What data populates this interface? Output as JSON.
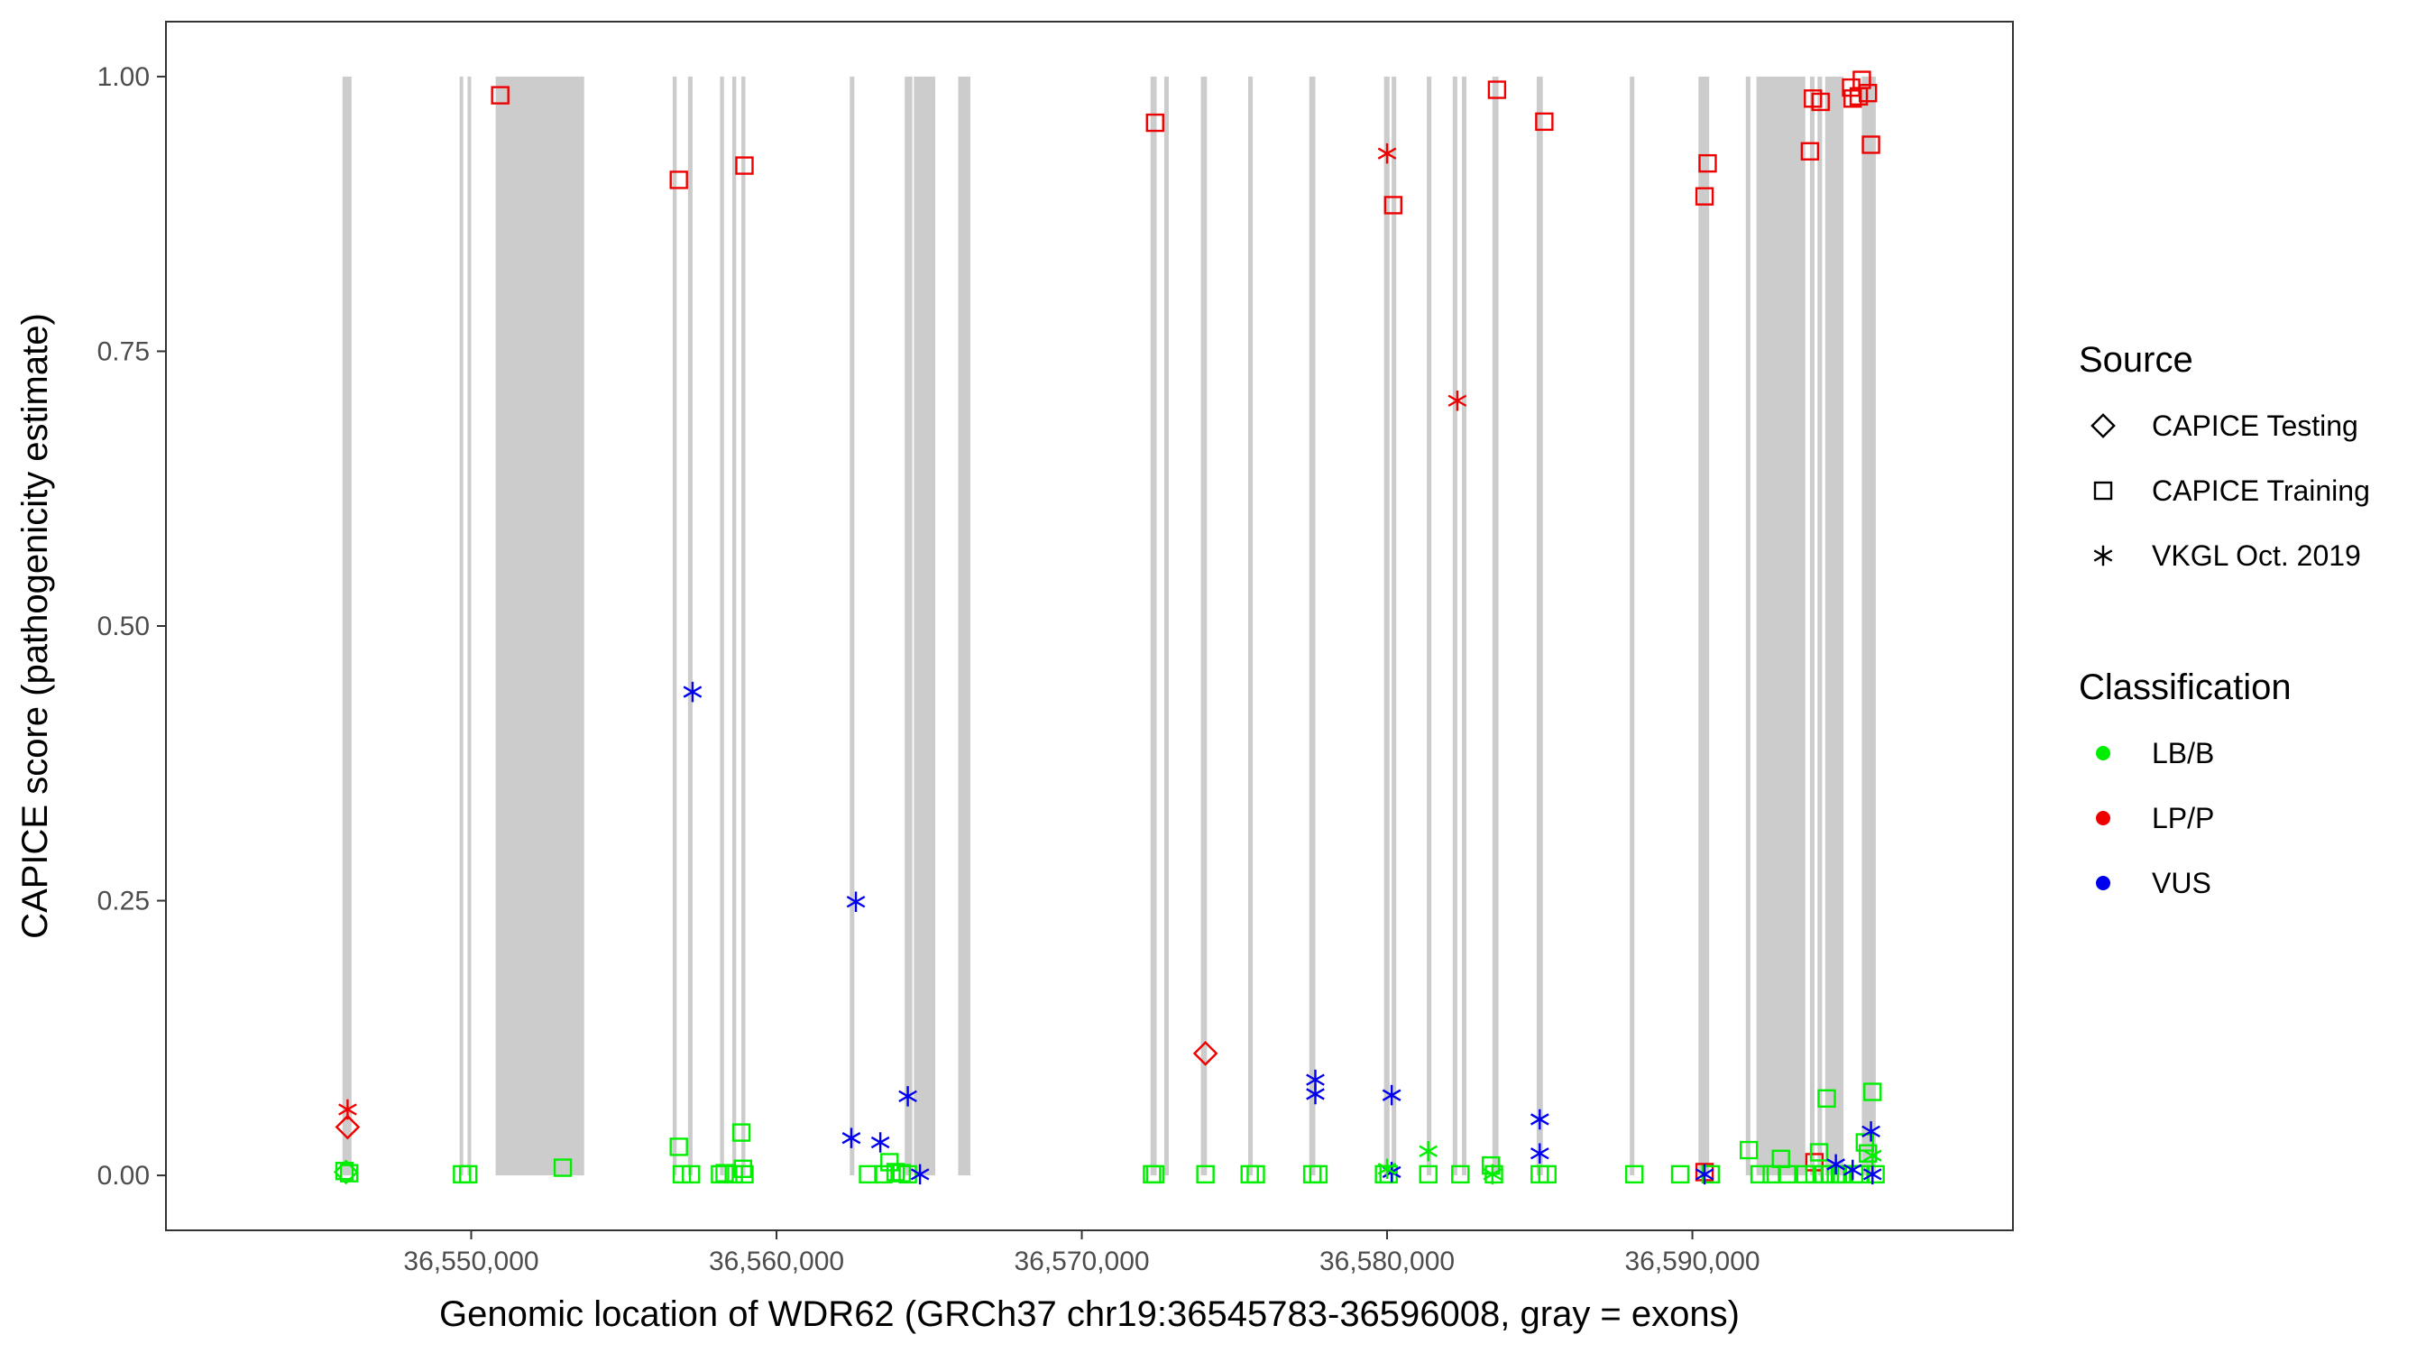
{
  "chart_data": {
    "type": "scatter",
    "xlabel": "Genomic location of WDR62 (GRCh37 chr19:36545783-36596008, gray = exons)",
    "ylabel": "CAPICE score (pathogenicity estimate)",
    "xlim": [
      36540000,
      36600500
    ],
    "ylim": [
      -0.05,
      1.05
    ],
    "x_ticks": [
      36550000,
      36560000,
      36570000,
      36580000,
      36590000
    ],
    "x_tick_labels": [
      "36,550,000",
      "36,560,000",
      "36,570,000",
      "36,580,000",
      "36,590,000"
    ],
    "y_ticks": [
      0,
      0.25,
      0.5,
      0.75,
      1.0
    ],
    "y_tick_labels": [
      "0.00",
      "0.25",
      "0.50",
      "0.75",
      "1.00"
    ],
    "grid": false,
    "legend_position": "right",
    "colors": {
      "LB/B": "#00ee00",
      "LP/P": "#ee0000",
      "VUS": "#0000ee",
      "exon": "#cccccc"
    },
    "exons": [
      [
        36545783,
        36546080
      ],
      [
        36549620,
        36549720
      ],
      [
        36549880,
        36549980
      ],
      [
        36550800,
        36553700
      ],
      [
        36556600,
        36556730
      ],
      [
        36557100,
        36557250
      ],
      [
        36558150,
        36558280
      ],
      [
        36558550,
        36558680
      ],
      [
        36558850,
        36558980
      ],
      [
        36562400,
        36562550
      ],
      [
        36564200,
        36564450
      ],
      [
        36564500,
        36565200
      ],
      [
        36565950,
        36566350
      ],
      [
        36572250,
        36572450
      ],
      [
        36572700,
        36572850
      ],
      [
        36573900,
        36574100
      ],
      [
        36575450,
        36575600
      ],
      [
        36577450,
        36577650
      ],
      [
        36579900,
        36580080
      ],
      [
        36580150,
        36580300
      ],
      [
        36581300,
        36581450
      ],
      [
        36582150,
        36582300
      ],
      [
        36582450,
        36582600
      ],
      [
        36583450,
        36583650
      ],
      [
        36584900,
        36585100
      ],
      [
        36587950,
        36588100
      ],
      [
        36590200,
        36590550
      ],
      [
        36591750,
        36591900
      ],
      [
        36592100,
        36593700
      ],
      [
        36593850,
        36594000
      ],
      [
        36594100,
        36594250
      ],
      [
        36594350,
        36594950
      ],
      [
        36595550,
        36596008
      ]
    ],
    "legend": {
      "source_title": "Source",
      "source_items": [
        {
          "label": "CAPICE Testing",
          "shape": "diamond"
        },
        {
          "label": "CAPICE Training",
          "shape": "square"
        },
        {
          "label": "VKGL Oct. 2019",
          "shape": "asterisk"
        }
      ],
      "class_title": "Classification",
      "class_items": [
        {
          "label": "LB/B",
          "color": "#00ee00"
        },
        {
          "label": "LP/P",
          "color": "#ee0000"
        },
        {
          "label": "VUS",
          "color": "#0000ee"
        }
      ]
    },
    "series": [
      {
        "source": "CAPICE Training",
        "class": "LP/P",
        "points": [
          [
            36550950,
            0.983
          ],
          [
            36556800,
            0.906
          ],
          [
            36558950,
            0.919
          ],
          [
            36572400,
            0.958
          ],
          [
            36580200,
            0.883
          ],
          [
            36583600,
            0.988
          ],
          [
            36585150,
            0.959
          ],
          [
            36590400,
            0.891
          ],
          [
            36590500,
            0.921
          ],
          [
            36593850,
            0.932
          ],
          [
            36593950,
            0.98
          ],
          [
            36594200,
            0.977
          ],
          [
            36595200,
            0.99
          ],
          [
            36595250,
            0.98
          ],
          [
            36595450,
            0.982
          ],
          [
            36595550,
            0.997
          ],
          [
            36595750,
            0.985
          ],
          [
            36595850,
            0.938
          ],
          [
            36590400,
            0.003
          ],
          [
            36594000,
            0.012
          ]
        ]
      },
      {
        "source": "CAPICE Training",
        "class": "LB/B",
        "points": [
          [
            36545850,
            0.004
          ],
          [
            36546000,
            0.002
          ],
          [
            36549700,
            0.001
          ],
          [
            36549900,
            0.001
          ],
          [
            36553000,
            0.007
          ],
          [
            36556800,
            0.026
          ],
          [
            36556900,
            0.001
          ],
          [
            36557200,
            0.001
          ],
          [
            36558150,
            0.001
          ],
          [
            36558300,
            0.002
          ],
          [
            36558600,
            0.001
          ],
          [
            36558850,
            0.039
          ],
          [
            36558900,
            0.006
          ],
          [
            36558950,
            0.001
          ],
          [
            36563000,
            0.001
          ],
          [
            36563500,
            0.001
          ],
          [
            36563700,
            0.012
          ],
          [
            36563900,
            0.003
          ],
          [
            36564100,
            0.002
          ],
          [
            36564300,
            0.001
          ],
          [
            36572300,
            0.001
          ],
          [
            36572400,
            0.001
          ],
          [
            36574050,
            0.001
          ],
          [
            36575500,
            0.001
          ],
          [
            36575700,
            0.001
          ],
          [
            36577550,
            0.001
          ],
          [
            36577750,
            0.001
          ],
          [
            36579900,
            0.001
          ],
          [
            36580050,
            0.001
          ],
          [
            36581350,
            0.001
          ],
          [
            36582400,
            0.001
          ],
          [
            36583400,
            0.009
          ],
          [
            36583500,
            0.001
          ],
          [
            36585000,
            0.001
          ],
          [
            36585250,
            0.001
          ],
          [
            36588100,
            0.001
          ],
          [
            36589600,
            0.001
          ],
          [
            36590600,
            0.001
          ],
          [
            36591850,
            0.023
          ],
          [
            36592200,
            0.001
          ],
          [
            36592600,
            0.001
          ],
          [
            36592900,
            0.015
          ],
          [
            36593100,
            0.001
          ],
          [
            36593700,
            0.001
          ],
          [
            36594000,
            0.001
          ],
          [
            36594150,
            0.021
          ],
          [
            36594300,
            0.001
          ],
          [
            36594400,
            0.07
          ],
          [
            36594500,
            0.001
          ],
          [
            36594700,
            0.001
          ],
          [
            36594900,
            0.001
          ],
          [
            36595300,
            0.001
          ],
          [
            36595500,
            0.001
          ],
          [
            36595650,
            0.03
          ],
          [
            36595750,
            0.02
          ],
          [
            36595900,
            0.076
          ],
          [
            36596000,
            0.001
          ]
        ]
      },
      {
        "source": "CAPICE Testing",
        "class": "LP/P",
        "points": [
          [
            36545950,
            0.044
          ],
          [
            36574050,
            0.111
          ]
        ]
      },
      {
        "source": "CAPICE Testing",
        "class": "LB/B",
        "points": [
          [
            36545900,
            0.003
          ]
        ]
      },
      {
        "source": "VKGL Oct. 2019",
        "class": "LP/P",
        "points": [
          [
            36545950,
            0.06
          ],
          [
            36580000,
            0.93
          ],
          [
            36582300,
            0.705
          ]
        ]
      },
      {
        "source": "VKGL Oct. 2019",
        "class": "VUS",
        "points": [
          [
            36557250,
            0.44
          ],
          [
            36562450,
            0.034
          ],
          [
            36562600,
            0.249
          ],
          [
            36563400,
            0.03
          ],
          [
            36564300,
            0.072
          ],
          [
            36564700,
            0.001
          ],
          [
            36577650,
            0.087
          ],
          [
            36577650,
            0.074
          ],
          [
            36580150,
            0.073
          ],
          [
            36580150,
            0.003
          ],
          [
            36585000,
            0.051
          ],
          [
            36585000,
            0.02
          ],
          [
            36590400,
            0.001
          ],
          [
            36594700,
            0.01
          ],
          [
            36595250,
            0.005
          ],
          [
            36595850,
            0.04
          ],
          [
            36595900,
            0.001
          ]
        ]
      },
      {
        "source": "VKGL Oct. 2019",
        "class": "LB/B",
        "points": [
          [
            36580000,
            0.006
          ],
          [
            36581350,
            0.022
          ],
          [
            36583450,
            0.001
          ],
          [
            36595900,
            0.018
          ]
        ]
      }
    ]
  }
}
